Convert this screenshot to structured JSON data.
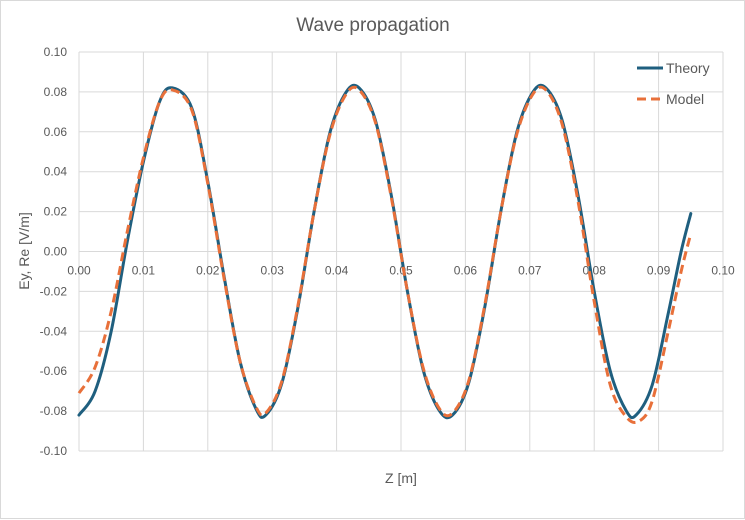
{
  "chart_data": {
    "type": "line",
    "title": "Wave propagation",
    "xlabel": "Z [m]",
    "ylabel": "Ey, Re [V/m]",
    "xlim": [
      0,
      0.1
    ],
    "ylim": [
      -0.1,
      0.1
    ],
    "x_ticks": [
      "0.00",
      "0.01",
      "0.02",
      "0.03",
      "0.04",
      "0.05",
      "0.06",
      "0.07",
      "0.08",
      "0.09",
      "0.10"
    ],
    "y_ticks": [
      "0.10",
      "0.08",
      "0.06",
      "0.04",
      "0.02",
      "0.00",
      "-0.02",
      "-0.04",
      "-0.06",
      "-0.08",
      "-0.10"
    ],
    "grid": true,
    "legend_position": "top-right",
    "series": [
      {
        "name": "Theory",
        "color": "#1f5f7f",
        "style": "solid",
        "x": [
          0,
          0.0025,
          0.005,
          0.0075,
          0.01,
          0.0125,
          0.0145,
          0.0175,
          0.02,
          0.0225,
          0.025,
          0.0275,
          0.029,
          0.0315,
          0.034,
          0.0365,
          0.039,
          0.0415,
          0.0435,
          0.046,
          0.0485,
          0.051,
          0.0535,
          0.056,
          0.058,
          0.0605,
          0.063,
          0.0655,
          0.068,
          0.0705,
          0.0725,
          0.075,
          0.0775,
          0.08,
          0.0825,
          0.085,
          0.0865,
          0.089,
          0.0915,
          0.0935,
          0.095
        ],
        "y": [
          -0.082,
          -0.07,
          -0.04,
          0.005,
          0.045,
          0.075,
          0.082,
          0.072,
          0.035,
          -0.012,
          -0.055,
          -0.079,
          -0.082,
          -0.066,
          -0.028,
          0.02,
          0.06,
          0.08,
          0.082,
          0.066,
          0.028,
          -0.02,
          -0.06,
          -0.08,
          -0.082,
          -0.066,
          -0.028,
          0.02,
          0.06,
          0.08,
          0.082,
          0.066,
          0.028,
          -0.02,
          -0.06,
          -0.08,
          -0.082,
          -0.067,
          -0.031,
          0.0,
          0.019
        ]
      },
      {
        "name": "Model",
        "color": "#e8703a",
        "style": "dashed",
        "x": [
          0,
          0.0025,
          0.005,
          0.0075,
          0.01,
          0.0125,
          0.0145,
          0.0175,
          0.02,
          0.0225,
          0.025,
          0.0275,
          0.029,
          0.0315,
          0.034,
          0.0365,
          0.039,
          0.0415,
          0.0435,
          0.046,
          0.0485,
          0.051,
          0.0535,
          0.056,
          0.058,
          0.0605,
          0.063,
          0.0655,
          0.068,
          0.0705,
          0.0725,
          0.075,
          0.0775,
          0.08,
          0.0825,
          0.085,
          0.087,
          0.089,
          0.0915,
          0.0935,
          0.095
        ],
        "y": [
          -0.071,
          -0.058,
          -0.03,
          0.01,
          0.047,
          0.075,
          0.081,
          0.071,
          0.034,
          -0.013,
          -0.055,
          -0.078,
          -0.081,
          -0.065,
          -0.027,
          0.02,
          0.059,
          0.079,
          0.081,
          0.065,
          0.027,
          -0.02,
          -0.059,
          -0.079,
          -0.081,
          -0.065,
          -0.027,
          0.02,
          0.059,
          0.079,
          0.081,
          0.064,
          0.025,
          -0.025,
          -0.067,
          -0.083,
          -0.085,
          -0.075,
          -0.04,
          -0.01,
          0.009
        ]
      }
    ]
  }
}
